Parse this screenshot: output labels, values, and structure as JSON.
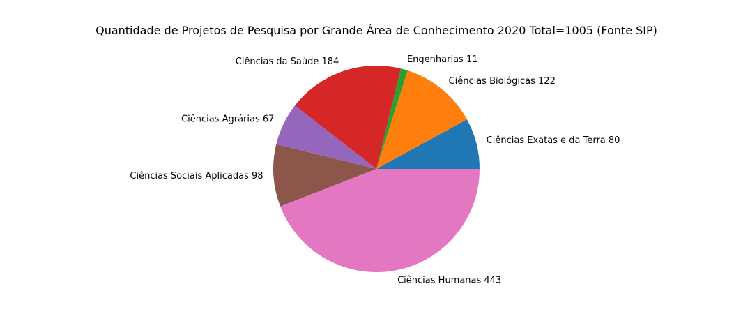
{
  "chart_data": {
    "type": "pie",
    "title": "Quantidade de Projetos de Pesquisa por Grande Área de Conhecimento 2020 Total=1005 (Fonte SIP)",
    "slices": [
      {
        "label": "Ciências Exatas e da Terra 80",
        "value": 80,
        "color": "#1f77b4"
      },
      {
        "label": "Ciências Biológicas 122",
        "value": 122,
        "color": "#ff7f0e"
      },
      {
        "label": "Engenharias 11",
        "value": 11,
        "color": "#2ca02c"
      },
      {
        "label": "Ciências da Saúde 184",
        "value": 184,
        "color": "#d62728"
      },
      {
        "label": "Ciências Agrárias 67",
        "value": 67,
        "color": "#9467bd"
      },
      {
        "label": "Ciências Sociais Aplicadas 98",
        "value": 98,
        "color": "#8c564b"
      },
      {
        "label": "Ciências Humanas 443",
        "value": 443,
        "color": "#e377c2"
      }
    ],
    "start_angle": 0,
    "direction": "counterclockwise",
    "legend": "none"
  }
}
